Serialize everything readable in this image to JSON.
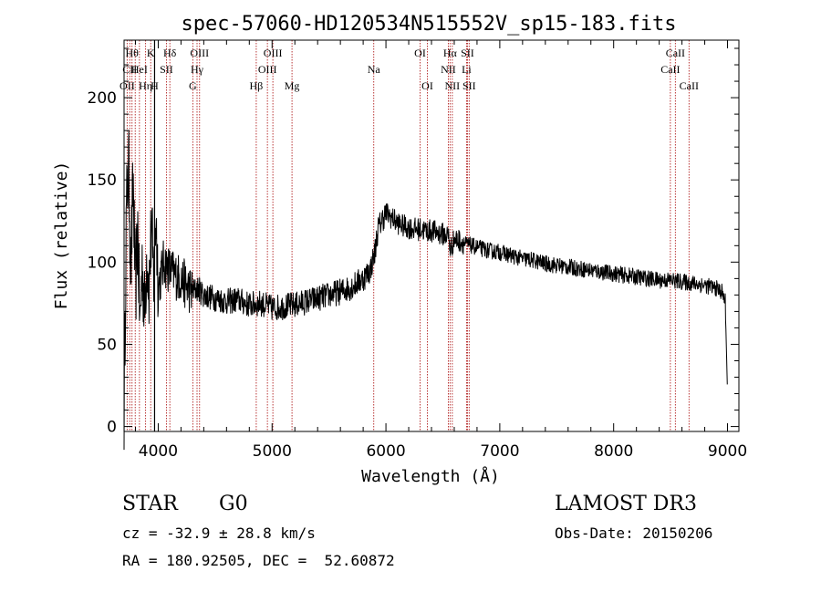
{
  "chart_data": {
    "type": "line",
    "title": "spec-57060-HD120534N515552V_sp15-183.fits",
    "xlabel": "Wavelength (Å)",
    "ylabel": "Flux (relative)",
    "xlim": [
      3700,
      9100
    ],
    "ylim": [
      -3,
      235
    ],
    "xticks": [
      4000,
      5000,
      6000,
      7000,
      8000,
      9000
    ],
    "yticks": [
      0,
      50,
      100,
      150,
      200
    ],
    "grid": false,
    "series": [
      {
        "name": "flux",
        "x": [
          3700,
          3720,
          3740,
          3760,
          3780,
          3800,
          3820,
          3840,
          3860,
          3880,
          3900,
          3920,
          3940,
          3960,
          3980,
          4000,
          4050,
          4100,
          4150,
          4200,
          4250,
          4300,
          4350,
          4400,
          4500,
          4600,
          4700,
          4800,
          4900,
          5000,
          5100,
          5200,
          5300,
          5400,
          5500,
          5600,
          5700,
          5800,
          5860,
          5900,
          5930,
          5960,
          6000,
          6050,
          6100,
          6150,
          6200,
          6250,
          6300,
          6350,
          6400,
          6450,
          6500,
          6550,
          6563,
          6580,
          6600,
          6650,
          6700,
          6750,
          6800,
          6900,
          7000,
          7100,
          7200,
          7300,
          7400,
          7500,
          7600,
          7700,
          7800,
          7900,
          8000,
          8100,
          8200,
          8300,
          8400,
          8500,
          8600,
          8700,
          8800,
          8900,
          8950,
          8980,
          9000
        ],
        "y": [
          8,
          130,
          160,
          95,
          150,
          80,
          120,
          60,
          100,
          70,
          105,
          85,
          120,
          90,
          130,
          85,
          100,
          95,
          92,
          90,
          85,
          82,
          84,
          80,
          78,
          76,
          77,
          74,
          75,
          72,
          73,
          74,
          76,
          78,
          80,
          82,
          85,
          90,
          95,
          105,
          120,
          125,
          130,
          127,
          124,
          122,
          121,
          120,
          120,
          119,
          119,
          118,
          117,
          116,
          108,
          110,
          114,
          113,
          111,
          110,
          109,
          107,
          106,
          104,
          102,
          101,
          99,
          98,
          97,
          96,
          95,
          94,
          93,
          92,
          91,
          90,
          89,
          89,
          88,
          87,
          86,
          84,
          82,
          76,
          20
        ]
      }
    ],
    "lines": [
      {
        "wl": 3727,
        "labels": [
          "OII"
        ],
        "rows": [
          2
        ],
        "style": "dashed"
      },
      {
        "wl": 3750,
        "labels": [
          "CII"
        ],
        "rows": [
          1
        ],
        "style": "dashed"
      },
      {
        "wl": 3770,
        "labels": [
          "Hθ"
        ],
        "rows": [
          0
        ],
        "style": "dashed"
      },
      {
        "wl": 3798,
        "labels": [],
        "rows": [],
        "style": "dashed"
      },
      {
        "wl": 3835,
        "labels": [
          "HeI"
        ],
        "rows": [
          1
        ],
        "style": "dashed"
      },
      {
        "wl": 3889,
        "labels": [
          "Hη"
        ],
        "rows": [
          2
        ],
        "style": "dashed"
      },
      {
        "wl": 3934,
        "labels": [
          "K"
        ],
        "rows": [
          0
        ],
        "style": "dashed"
      },
      {
        "wl": 3968,
        "labels": [
          "H"
        ],
        "rows": [
          2
        ],
        "style": "solid"
      },
      {
        "wl": 4072,
        "labels": [
          "SII"
        ],
        "rows": [
          1
        ],
        "style": "dashed"
      },
      {
        "wl": 4102,
        "labels": [
          "Hδ"
        ],
        "rows": [
          0
        ],
        "style": "dashed"
      },
      {
        "wl": 4304,
        "labels": [
          "G"
        ],
        "rows": [
          2
        ],
        "style": "dashed"
      },
      {
        "wl": 4341,
        "labels": [
          "Hγ"
        ],
        "rows": [
          1
        ],
        "style": "dashed"
      },
      {
        "wl": 4363,
        "labels": [
          "OIII"
        ],
        "rows": [
          0
        ],
        "style": "dashed"
      },
      {
        "wl": 4861,
        "labels": [
          "Hβ"
        ],
        "rows": [
          2
        ],
        "style": "dashed"
      },
      {
        "wl": 4959,
        "labels": [
          "OIII"
        ],
        "rows": [
          1
        ],
        "style": "dashed"
      },
      {
        "wl": 5007,
        "labels": [
          "OIII"
        ],
        "rows": [
          0
        ],
        "style": "dashed"
      },
      {
        "wl": 5175,
        "labels": [
          "Mg"
        ],
        "rows": [
          2
        ],
        "style": "dashed"
      },
      {
        "wl": 5893,
        "labels": [
          "Na"
        ],
        "rows": [
          1
        ],
        "style": "dashed"
      },
      {
        "wl": 6300,
        "labels": [
          "OI"
        ],
        "rows": [
          0
        ],
        "style": "dashed"
      },
      {
        "wl": 6364,
        "labels": [
          "OI"
        ],
        "rows": [
          2
        ],
        "style": "dashed"
      },
      {
        "wl": 6548,
        "labels": [
          "NII"
        ],
        "rows": [
          1
        ],
        "style": "dashed"
      },
      {
        "wl": 6563,
        "labels": [
          "Hα"
        ],
        "rows": [
          0
        ],
        "style": "dashed"
      },
      {
        "wl": 6583,
        "labels": [
          "NII"
        ],
        "rows": [
          2
        ],
        "style": "dashed"
      },
      {
        "wl": 6708,
        "labels": [
          "Li"
        ],
        "rows": [
          1
        ],
        "style": "dashed"
      },
      {
        "wl": 6716,
        "labels": [
          "SII"
        ],
        "rows": [
          0
        ],
        "style": "dashed"
      },
      {
        "wl": 6731,
        "labels": [
          "SII"
        ],
        "rows": [
          2
        ],
        "style": "dashed"
      },
      {
        "wl": 8498,
        "labels": [
          "CaII"
        ],
        "rows": [
          1
        ],
        "style": "dashed"
      },
      {
        "wl": 8542,
        "labels": [
          "CaII"
        ],
        "rows": [
          0
        ],
        "style": "dashed"
      },
      {
        "wl": 8662,
        "labels": [
          "CaII"
        ],
        "rows": [
          2
        ],
        "style": "dashed"
      }
    ],
    "colors": {
      "spectrum": "#000000",
      "line_marker": "#b22222",
      "axis": "#000000"
    }
  },
  "info": {
    "object_class": "STAR",
    "subclass": "G0",
    "survey": "LAMOST DR3",
    "redshift": "cz = -32.9 ± 28.8 km/s",
    "obs_date": "Obs-Date: 20150206",
    "coords": "RA = 180.92505, DEC =  52.60872"
  }
}
